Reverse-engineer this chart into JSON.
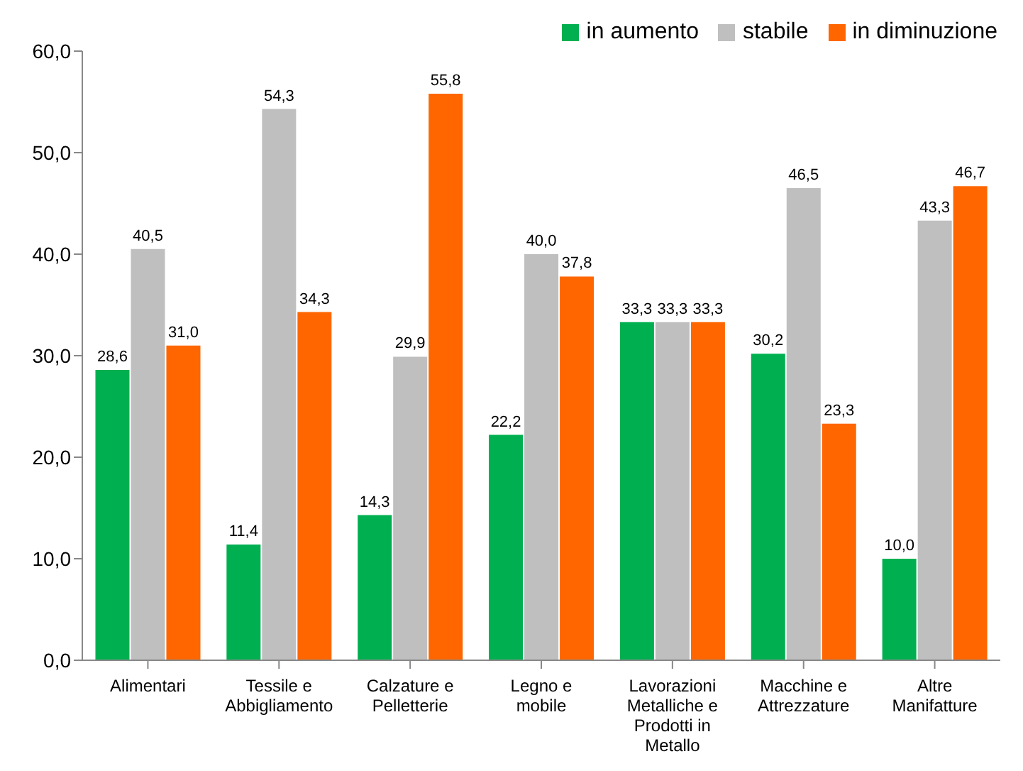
{
  "chart_data": {
    "type": "bar",
    "categories": [
      "Alimentari",
      "Tessile e Abbigliamento",
      "Calzature e Pelletterie",
      "Legno e mobile",
      "Lavorazioni Metalliche e Prodotti in Metallo",
      "Macchine e Attrezzature",
      "Altre Manifatture"
    ],
    "series": [
      {
        "name": "in aumento",
        "color": "#00b050",
        "values": [
          28.6,
          11.4,
          14.3,
          22.2,
          33.3,
          30.2,
          10.0
        ],
        "value_labels": [
          "28,6",
          "11,4",
          "14,3",
          "22,2",
          "33,3",
          "30,2",
          "10,0"
        ]
      },
      {
        "name": "stabile",
        "color": "#bfbfbf",
        "values": [
          40.5,
          54.3,
          29.9,
          40.0,
          33.3,
          46.5,
          43.3
        ],
        "value_labels": [
          "40,5",
          "54,3",
          "29,9",
          "40,0",
          "33,3",
          "46,5",
          "43,3"
        ]
      },
      {
        "name": "in diminuzione",
        "color": "#ff6600",
        "values": [
          31.0,
          34.3,
          55.8,
          37.8,
          33.3,
          23.3,
          46.7
        ],
        "value_labels": [
          "31,0",
          "34,3",
          "55,8",
          "37,8",
          "33,3",
          "23,3",
          "46,7"
        ]
      }
    ],
    "ylim": [
      0,
      60
    ],
    "yticks": [
      {
        "value": 0,
        "label": "0,0"
      },
      {
        "value": 10,
        "label": "10,0"
      },
      {
        "value": 20,
        "label": "20,0"
      },
      {
        "value": 30,
        "label": "30,0"
      },
      {
        "value": 40,
        "label": "40,0"
      },
      {
        "value": 50,
        "label": "50,0"
      },
      {
        "value": 60,
        "label": "60,0"
      }
    ],
    "legend": "top right",
    "grid": false
  }
}
